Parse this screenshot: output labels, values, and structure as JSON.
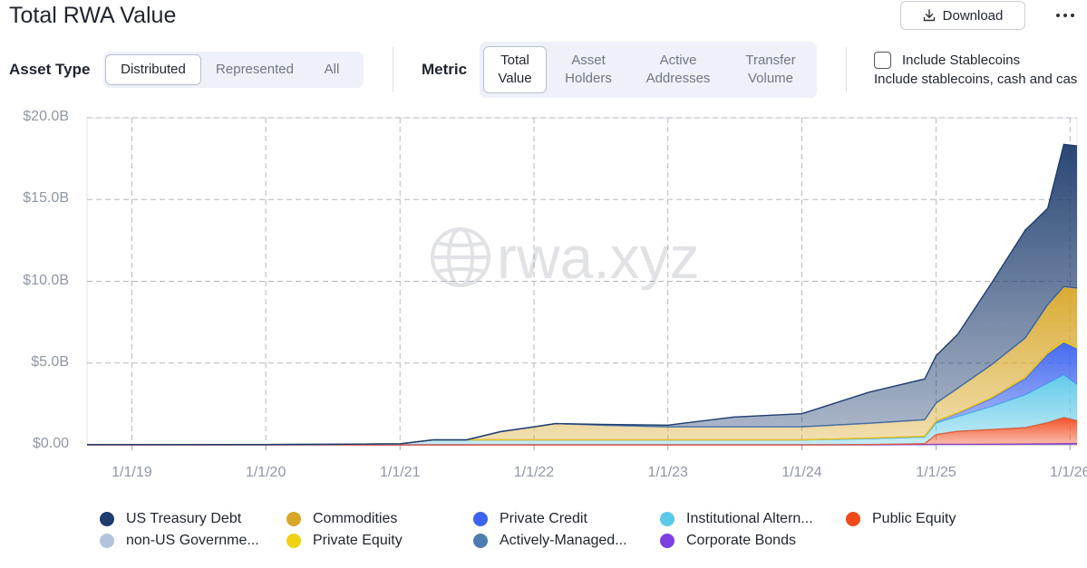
{
  "title": "Total RWA Value",
  "download_label": "Download",
  "asset_type": {
    "label": "Asset Type",
    "options": [
      "Distributed",
      "Represented",
      "All"
    ],
    "selected": "Distributed"
  },
  "metric": {
    "label": "Metric",
    "options": [
      [
        "Total",
        "Value"
      ],
      [
        "Asset",
        "Holders"
      ],
      [
        "Active",
        "Addresses"
      ],
      [
        "Transfer",
        "Volume"
      ]
    ],
    "selected": "Total Value"
  },
  "stablecoins": {
    "label": "Include Stablecoins",
    "description": "Include stablecoins, cash and cas",
    "checked": false
  },
  "watermark": "rwa.xyz",
  "chart_data": {
    "type": "area",
    "stacked": true,
    "x_type": "date",
    "xlim": [
      "2018-09-01",
      "2026-01-20"
    ],
    "ylim": [
      0,
      20
    ],
    "y_unit": "B",
    "yticks": [
      0,
      5,
      10,
      15,
      20
    ],
    "ytick_labels": [
      "$0.00",
      "$5.0B",
      "$10.0B",
      "$15.0B",
      "$20.0B"
    ],
    "xticks": [
      "2019-01-01",
      "2020-01-01",
      "2021-01-01",
      "2022-01-01",
      "2023-01-01",
      "2024-01-01",
      "2025-01-01",
      "2026-01-01"
    ],
    "xtick_labels": [
      "1/1/19",
      "1/1/20",
      "1/1/21",
      "1/1/22",
      "1/1/23",
      "1/1/24",
      "1/1/25",
      "1/1/26"
    ],
    "grid": true,
    "legend_position": "bottom",
    "x": [
      "2018-09-01",
      "2019-01-01",
      "2020-01-01",
      "2020-07-01",
      "2021-01-01",
      "2021-04-01",
      "2021-07-01",
      "2021-10-01",
      "2022-01-01",
      "2022-03-01",
      "2022-07-01",
      "2023-01-01",
      "2023-07-01",
      "2024-01-01",
      "2024-07-01",
      "2024-12-01",
      "2025-01-01",
      "2025-03-01",
      "2025-06-01",
      "2025-09-01",
      "2025-11-01",
      "2025-12-15",
      "2026-01-20"
    ],
    "series": [
      {
        "name": "Corporate Bonds",
        "color": "#7b3fe4",
        "values": [
          0,
          0,
          0,
          0,
          0,
          0,
          0,
          0,
          0,
          0,
          0,
          0,
          0,
          0,
          0,
          0.02,
          0.03,
          0.03,
          0.04,
          0.05,
          0.06,
          0.07,
          0.08
        ]
      },
      {
        "name": "Public Equity",
        "color": "#f04a1b",
        "values": [
          0,
          0,
          0,
          0,
          0,
          0,
          0,
          0,
          0,
          0,
          0,
          0,
          0,
          0,
          0.02,
          0.05,
          0.6,
          0.8,
          0.9,
          1.0,
          1.3,
          1.6,
          1.4
        ]
      },
      {
        "name": "Institutional Altern...",
        "color": "#5bc8e8",
        "values": [
          0.01,
          0.01,
          0.02,
          0.03,
          0.06,
          0.3,
          0.3,
          0.3,
          0.3,
          0.3,
          0.3,
          0.3,
          0.3,
          0.3,
          0.35,
          0.4,
          0.7,
          0.9,
          1.4,
          2.0,
          2.4,
          2.6,
          2.2
        ]
      },
      {
        "name": "Private Credit",
        "color": "#3b63f0",
        "values": [
          0,
          0,
          0,
          0,
          0,
          0,
          0,
          0,
          0,
          0,
          0,
          0,
          0,
          0,
          0.03,
          0.05,
          0.1,
          0.2,
          0.5,
          1.0,
          1.8,
          2.0,
          2.2
        ]
      },
      {
        "name": "Private Equity",
        "color": "#f2d012",
        "values": [
          0,
          0,
          0,
          0,
          0,
          0,
          0,
          0,
          0,
          0,
          0,
          0,
          0,
          0,
          0.01,
          0.01,
          0.02,
          0.03,
          0.05,
          0.08,
          0.1,
          0.1,
          0.1
        ]
      },
      {
        "name": "Commodities",
        "color": "#d8a728",
        "values": [
          0,
          0,
          0,
          0,
          0,
          0,
          0,
          0.5,
          0.8,
          1.0,
          0.9,
          0.8,
          0.8,
          0.8,
          0.9,
          1.0,
          1.1,
          1.5,
          2.0,
          2.4,
          2.9,
          3.3,
          3.6
        ]
      },
      {
        "name": "non-US Governme...",
        "color": "#b3c3dc",
        "values": [
          0,
          0,
          0,
          0,
          0,
          0,
          0,
          0,
          0,
          0,
          0,
          0,
          0,
          0,
          0,
          0,
          0,
          0,
          0,
          0,
          0,
          0,
          0
        ]
      },
      {
        "name": "Actively-Managed...",
        "color": "#4e7bb0",
        "values": [
          0,
          0,
          0,
          0,
          0,
          0,
          0,
          0,
          0,
          0,
          0,
          0,
          0,
          0,
          0,
          0,
          0,
          0,
          0,
          0,
          0,
          0,
          0
        ]
      },
      {
        "name": "US Treasury Debt",
        "color": "#1e3d6e",
        "values": [
          0,
          0,
          0,
          0,
          0,
          0,
          0,
          0,
          0,
          0,
          0.05,
          0.1,
          0.6,
          0.8,
          1.9,
          2.5,
          2.9,
          3.3,
          5.0,
          6.6,
          5.9,
          8.7,
          8.7
        ]
      }
    ],
    "legend": [
      {
        "name": "US Treasury Debt",
        "color": "#1e3d6e"
      },
      {
        "name": "Commodities",
        "color": "#d8a728"
      },
      {
        "name": "Private Credit",
        "color": "#3b63f0"
      },
      {
        "name": "Institutional Altern...",
        "color": "#5bc8e8"
      },
      {
        "name": "Public Equity",
        "color": "#f04a1b"
      },
      {
        "name": "non-US Governme...",
        "color": "#b3c3dc"
      },
      {
        "name": "Private Equity",
        "color": "#f2d012"
      },
      {
        "name": "Actively-Managed...",
        "color": "#4e7bb0"
      },
      {
        "name": "Corporate Bonds",
        "color": "#7b3fe4"
      }
    ]
  }
}
